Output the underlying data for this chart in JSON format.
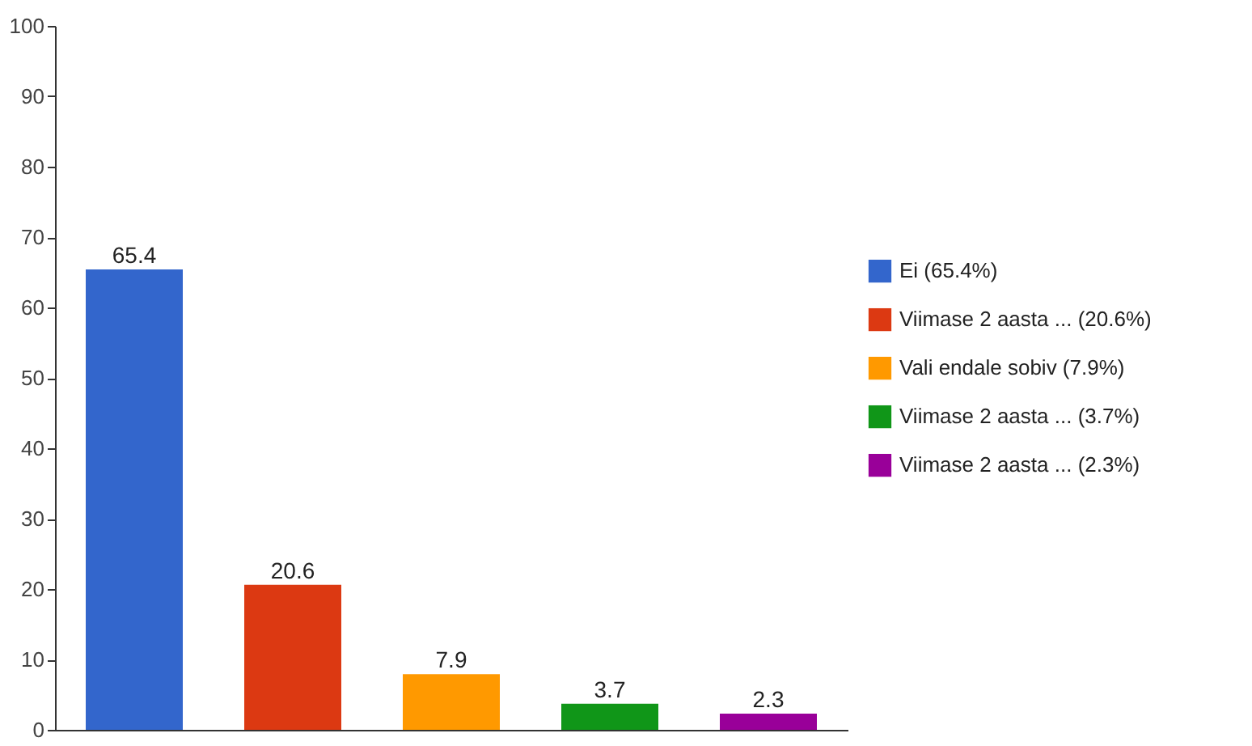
{
  "chart_data": {
    "type": "bar",
    "categories": [
      null,
      null,
      null,
      null,
      null
    ],
    "series": [
      {
        "name": "Ei (65.4%)",
        "color": "#3366cc",
        "values": [
          65.4,
          null,
          null,
          null,
          null
        ]
      },
      {
        "name": "Viimase 2 aasta ... (20.6%)",
        "color": "#dc3912",
        "values": [
          null,
          20.6,
          null,
          null,
          null
        ]
      },
      {
        "name": "Vali endale sobiv (7.9%)",
        "color": "#ff9900",
        "values": [
          null,
          null,
          7.9,
          null,
          null
        ]
      },
      {
        "name": "Viimase 2 aasta ... (3.7%)",
        "color": "#109618",
        "values": [
          null,
          null,
          null,
          3.7,
          null
        ]
      },
      {
        "name": "Viimase 2 aasta ... (2.3%)",
        "color": "#990099",
        "values": [
          null,
          null,
          null,
          null,
          2.3
        ]
      }
    ],
    "ylim": [
      0,
      100
    ],
    "yticks": [
      0,
      10,
      20,
      30,
      40,
      50,
      60,
      70,
      80,
      90,
      100
    ],
    "data_labels": true,
    "legend": "right",
    "tick_labels": "y",
    "grid": false
  }
}
